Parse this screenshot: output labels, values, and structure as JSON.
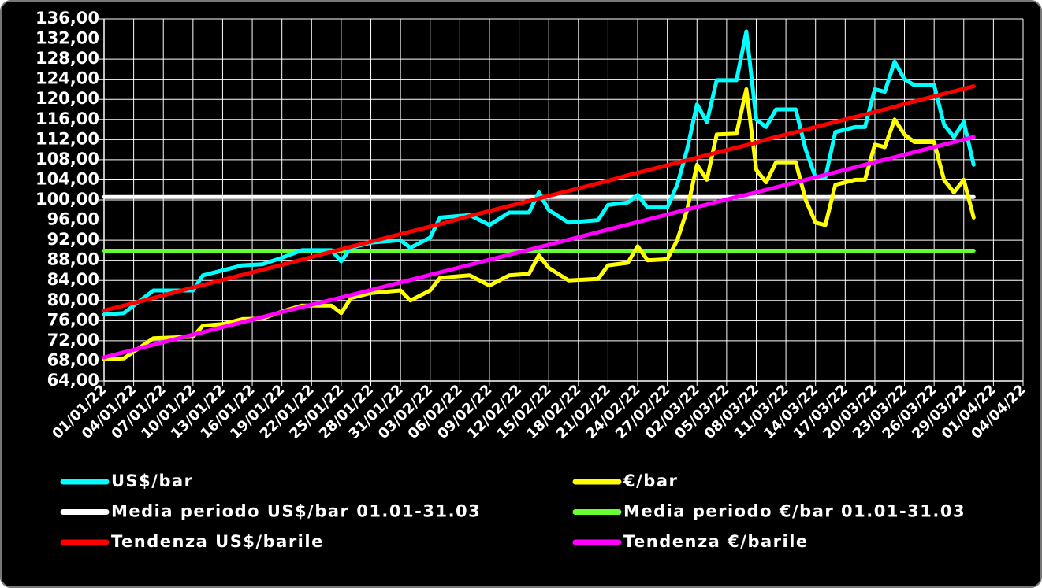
{
  "chart_data": {
    "type": "line",
    "x": [
      "01/01/22",
      "03/01/22",
      "06/01/22",
      "10/01/22",
      "11/01/22",
      "13/01/22",
      "15/01/22",
      "17/01/22",
      "19/01/22",
      "21/01/22",
      "24/01/22",
      "25/01/22",
      "26/01/22",
      "28/01/22",
      "31/01/22",
      "01/02/22",
      "03/02/22",
      "04/02/22",
      "07/02/22",
      "09/02/22",
      "11/02/22",
      "13/02/22",
      "14/02/22",
      "15/02/22",
      "17/02/22",
      "20/02/22",
      "21/02/22",
      "23/02/22",
      "24/02/22",
      "25/02/22",
      "27/02/22",
      "28/02/22",
      "01/03/22",
      "02/03/22",
      "03/03/22",
      "04/03/22",
      "06/03/22",
      "07/03/22",
      "08/03/22",
      "09/03/22",
      "10/03/22",
      "12/03/22",
      "13/03/22",
      "14/03/22",
      "15/03/22",
      "16/03/22",
      "18/03/22",
      "19/03/22",
      "20/03/22",
      "21/03/22",
      "22/03/22",
      "23/03/22",
      "24/03/22",
      "26/03/22",
      "27/03/22",
      "28/03/22",
      "29/03/22",
      "30/03/22"
    ],
    "series": [
      {
        "name": "US$/bar",
        "color": "#00ffff",
        "values": [
          77.2,
          77.5,
          82,
          82,
          85,
          86,
          87,
          87.2,
          88.5,
          90,
          90,
          87.8,
          90.5,
          91.5,
          92,
          90.5,
          92.5,
          96.5,
          97,
          95,
          97.5,
          97.5,
          101.5,
          98,
          95.5,
          96,
          99,
          99.5,
          101,
          98.5,
          98.5,
          103,
          110,
          119,
          115.5,
          123.8,
          123.8,
          133.5,
          116,
          114.5,
          118,
          118,
          110,
          104.5,
          104.5,
          113.5,
          114.5,
          114.5,
          122,
          121.5,
          127.5,
          124,
          122.8,
          122.8,
          115,
          112.5,
          115.5,
          107
        ]
      },
      {
        "name": "€/bar",
        "color": "#ffff00",
        "values": [
          68.3,
          68.5,
          72.5,
          72.8,
          75,
          75.3,
          76.3,
          76.4,
          77.8,
          79,
          79,
          77.5,
          80.5,
          81.5,
          82,
          80,
          82,
          84.5,
          85,
          83,
          85,
          85.3,
          89,
          86.5,
          84,
          84.3,
          87,
          87.5,
          90.8,
          88,
          88.2,
          92,
          98,
          107,
          104,
          113,
          113.2,
          122,
          106,
          103.5,
          107.5,
          107.5,
          100,
          95.5,
          95,
          103,
          104,
          104,
          111,
          110.5,
          116,
          113,
          111.5,
          111.5,
          104,
          101.5,
          104,
          96.5
        ]
      },
      {
        "name": "Media periodo US$/bar 01.01-31.03",
        "color": "#ffffff",
        "values": [
          100.6,
          100.6,
          100.6,
          100.6,
          100.6,
          100.6,
          100.6,
          100.6,
          100.6,
          100.6,
          100.6,
          100.6,
          100.6,
          100.6,
          100.6,
          100.6,
          100.6,
          100.6,
          100.6,
          100.6,
          100.6,
          100.6,
          100.6,
          100.6,
          100.6,
          100.6,
          100.6,
          100.6,
          100.6,
          100.6,
          100.6,
          100.6,
          100.6,
          100.6,
          100.6,
          100.6,
          100.6,
          100.6,
          100.6,
          100.6,
          100.6,
          100.6,
          100.6,
          100.6,
          100.6,
          100.6,
          100.6,
          100.6,
          100.6,
          100.6,
          100.6,
          100.6,
          100.6,
          100.6,
          100.6,
          100.6,
          100.6,
          100.6
        ]
      },
      {
        "name": "Media periodo €/bar 01.01-31.03",
        "color": "#66ff33",
        "values": [
          89.9,
          89.9,
          89.9,
          89.9,
          89.9,
          89.9,
          89.9,
          89.9,
          89.9,
          89.9,
          89.9,
          89.9,
          89.9,
          89.9,
          89.9,
          89.9,
          89.9,
          89.9,
          89.9,
          89.9,
          89.9,
          89.9,
          89.9,
          89.9,
          89.9,
          89.9,
          89.9,
          89.9,
          89.9,
          89.9,
          89.9,
          89.9,
          89.9,
          89.9,
          89.9,
          89.9,
          89.9,
          89.9,
          89.9,
          89.9,
          89.9,
          89.9,
          89.9,
          89.9,
          89.9,
          89.9,
          89.9,
          89.9,
          89.9,
          89.9,
          89.9,
          89.9,
          89.9,
          89.9,
          89.9,
          89.9,
          89.9,
          89.9
        ]
      },
      {
        "name": "Tendenza US$/barile",
        "color": "#ff0000",
        "values": [
          78.0,
          79.0,
          80.5,
          82.6,
          83.1,
          84.1,
          85.1,
          86.1,
          87.1,
          88.1,
          89.7,
          90.2,
          90.7,
          91.7,
          93.2,
          93.7,
          94.7,
          95.2,
          96.8,
          97.8,
          98.8,
          99.8,
          100.3,
          100.8,
          101.8,
          103.3,
          103.8,
          104.9,
          105.4,
          105.9,
          106.9,
          107.4,
          107.9,
          108.4,
          108.9,
          109.4,
          110.4,
          110.9,
          111.4,
          112.0,
          112.5,
          113.5,
          114.0,
          114.5,
          115.0,
          115.5,
          116.5,
          117.0,
          117.5,
          118.0,
          118.5,
          119.1,
          119.6,
          120.6,
          121.1,
          121.6,
          122.1,
          122.6
        ]
      },
      {
        "name": "Tendenza €/barile",
        "color": "#ff00ff",
        "values": [
          68.7,
          69.7,
          71.2,
          73.2,
          73.7,
          74.7,
          75.7,
          76.7,
          77.7,
          78.7,
          80.1,
          80.6,
          81.1,
          82.1,
          83.6,
          84.1,
          85.1,
          85.6,
          87.1,
          88.1,
          89.1,
          90.1,
          90.6,
          91.1,
          92.1,
          93.6,
          94.1,
          95.1,
          95.6,
          96.1,
          97.1,
          97.6,
          98.1,
          98.6,
          99.1,
          99.6,
          100.6,
          101.0,
          101.5,
          102.0,
          102.5,
          103.5,
          104.0,
          104.5,
          105.0,
          105.5,
          106.5,
          107.0,
          107.5,
          108.0,
          108.5,
          109.0,
          109.5,
          110.5,
          111.0,
          111.5,
          112.0,
          112.5
        ]
      }
    ],
    "xlim": [
      "01/01/22",
      "04/04/22"
    ],
    "xticks": [
      "01/01/22",
      "04/01/22",
      "07/01/22",
      "10/01/22",
      "13/01/22",
      "16/01/22",
      "19/01/22",
      "22/01/22",
      "25/01/22",
      "28/01/22",
      "31/01/22",
      "03/02/22",
      "06/02/22",
      "09/02/22",
      "12/02/22",
      "15/02/22",
      "18/02/22",
      "21/02/22",
      "24/02/22",
      "27/02/22",
      "02/03/22",
      "05/03/22",
      "08/03/22",
      "11/03/22",
      "14/03/22",
      "17/03/22",
      "20/03/22",
      "23/03/22",
      "26/03/22",
      "29/03/22",
      "01/04/22",
      "04/04/22"
    ],
    "ylim": [
      64,
      136
    ],
    "yticks": [
      {
        "value": 64,
        "label": "64,00"
      },
      {
        "value": 68,
        "label": "68,00"
      },
      {
        "value": 72,
        "label": "72,00"
      },
      {
        "value": 76,
        "label": "76,00"
      },
      {
        "value": 80,
        "label": "80,00"
      },
      {
        "value": 84,
        "label": "84,00"
      },
      {
        "value": 88,
        "label": "88,00"
      },
      {
        "value": 92,
        "label": "92,00"
      },
      {
        "value": 96,
        "label": "96,00"
      },
      {
        "value": 100,
        "label": "100,00"
      },
      {
        "value": 104,
        "label": "104,00"
      },
      {
        "value": 108,
        "label": "108,00"
      },
      {
        "value": 112,
        "label": "112,00"
      },
      {
        "value": 116,
        "label": "116,00"
      },
      {
        "value": 120,
        "label": "120,00"
      },
      {
        "value": 124,
        "label": "124,00"
      },
      {
        "value": 128,
        "label": "128,00"
      },
      {
        "value": 132,
        "label": "132,00"
      },
      {
        "value": 136,
        "label": "136,00"
      }
    ],
    "grid": true,
    "legend": "bottom"
  }
}
